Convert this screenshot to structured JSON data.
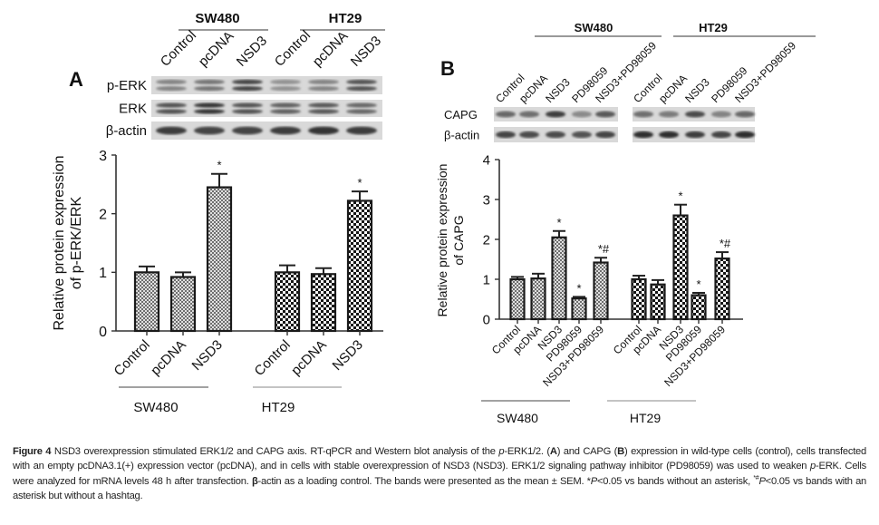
{
  "panel_a": {
    "letter": "A",
    "header_groups": [
      "SW480",
      "HT29"
    ],
    "lanes": [
      "Control",
      "pcDNA",
      "NSD3",
      "Control",
      "pcDNA",
      "NSD3"
    ],
    "blot_rows": [
      "p-ERK",
      "ERK",
      "β-actin"
    ]
  },
  "panel_b": {
    "letter": "B",
    "header_groups": [
      "SW480",
      "HT29"
    ],
    "lanes": [
      "Control",
      "pcDNA",
      "NSD3",
      "PD98059",
      "NSD3+PD98059",
      "Control",
      "pcDNA",
      "NSD3",
      "PD98059",
      "NSD3+PD98059"
    ],
    "blot_rows": [
      "CAPG",
      "β-actin"
    ]
  },
  "chart_data": [
    {
      "type": "bar",
      "panel": "A",
      "ylabel": [
        "Relative protein expression",
        "of p-ERK/ERK"
      ],
      "ylim": [
        0,
        3
      ],
      "yticks": [
        0,
        1,
        2,
        3
      ],
      "groups": [
        "SW480",
        "HT29"
      ],
      "categories": [
        "Control",
        "pcDNA",
        "NSD3"
      ],
      "series": [
        {
          "group": "SW480",
          "values": [
            1.0,
            0.92,
            2.45
          ],
          "errors": [
            0.1,
            0.08,
            0.23
          ],
          "annotations": [
            "",
            "",
            "*"
          ]
        },
        {
          "group": "HT29",
          "values": [
            1.0,
            0.97,
            2.22
          ],
          "errors": [
            0.12,
            0.1,
            0.16
          ],
          "annotations": [
            "",
            "",
            "*"
          ]
        }
      ],
      "error_bars": "SEM",
      "grid": false,
      "legend": "none"
    },
    {
      "type": "bar",
      "panel": "B",
      "ylabel": [
        "Relative protein expression",
        "of CAPG"
      ],
      "ylim": [
        0,
        4
      ],
      "yticks": [
        0,
        1,
        2,
        3,
        4
      ],
      "groups": [
        "SW480",
        "HT29"
      ],
      "categories": [
        "Control",
        "pcDNA",
        "NSD3",
        "PD98059",
        "NSD3+PD98059"
      ],
      "series": [
        {
          "group": "SW480",
          "values": [
            1.0,
            1.02,
            2.05,
            0.52,
            1.42
          ],
          "errors": [
            0.06,
            0.12,
            0.16,
            0.04,
            0.12
          ],
          "annotations": [
            "",
            "",
            "*",
            "*",
            "*#"
          ]
        },
        {
          "group": "HT29",
          "values": [
            1.0,
            0.87,
            2.6,
            0.6,
            1.52
          ],
          "errors": [
            0.09,
            0.11,
            0.27,
            0.06,
            0.16
          ],
          "annotations": [
            "",
            "",
            "*",
            "*",
            "*#"
          ]
        }
      ],
      "error_bars": "SEM",
      "grid": false,
      "legend": "none"
    }
  ],
  "caption": {
    "segments": [
      {
        "text": "Figure 4"
      },
      {
        "text": " NSD3 overexpression stimulated ERK1/2 and CAPG axis. RT-qPCR and Western blot analysis of the "
      },
      {
        "text": "p"
      },
      {
        "text": "-ERK1/2. ("
      },
      {
        "text": "A"
      },
      {
        "text": ") and CAPG ("
      },
      {
        "text": "B"
      },
      {
        "text": ") expression in wild-type cells (control), cells transfected with an empty pcDNA3.1(+) expression vector (pcDNA), and in cells with stable overexpression of NSD3 (NSD3). ERK1/2 signaling pathway inhibitor (PD98059) was used to weaken "
      },
      {
        "text": "p"
      },
      {
        "text": "-ERK. Cells were analyzed for mRNA levels 48 h after transfection. "
      },
      {
        "text": "β"
      },
      {
        "text": "-actin as a loading control. The bands were presented as the mean ± SEM. *"
      },
      {
        "text": "P"
      },
      {
        "text": "<0.05 vs bands without an asterisk, "
      },
      {
        "text": "*#"
      },
      {
        "text": "P"
      },
      {
        "text": "<0.05 vs bands with an asterisk but without a hashtag."
      }
    ]
  },
  "colors": {
    "bar_outline": "#1a1a1a",
    "sw480_fill_dark": "#7a7a7a",
    "ht29_fill_dark": "#111111",
    "blot_background": "#d9d9d9"
  }
}
